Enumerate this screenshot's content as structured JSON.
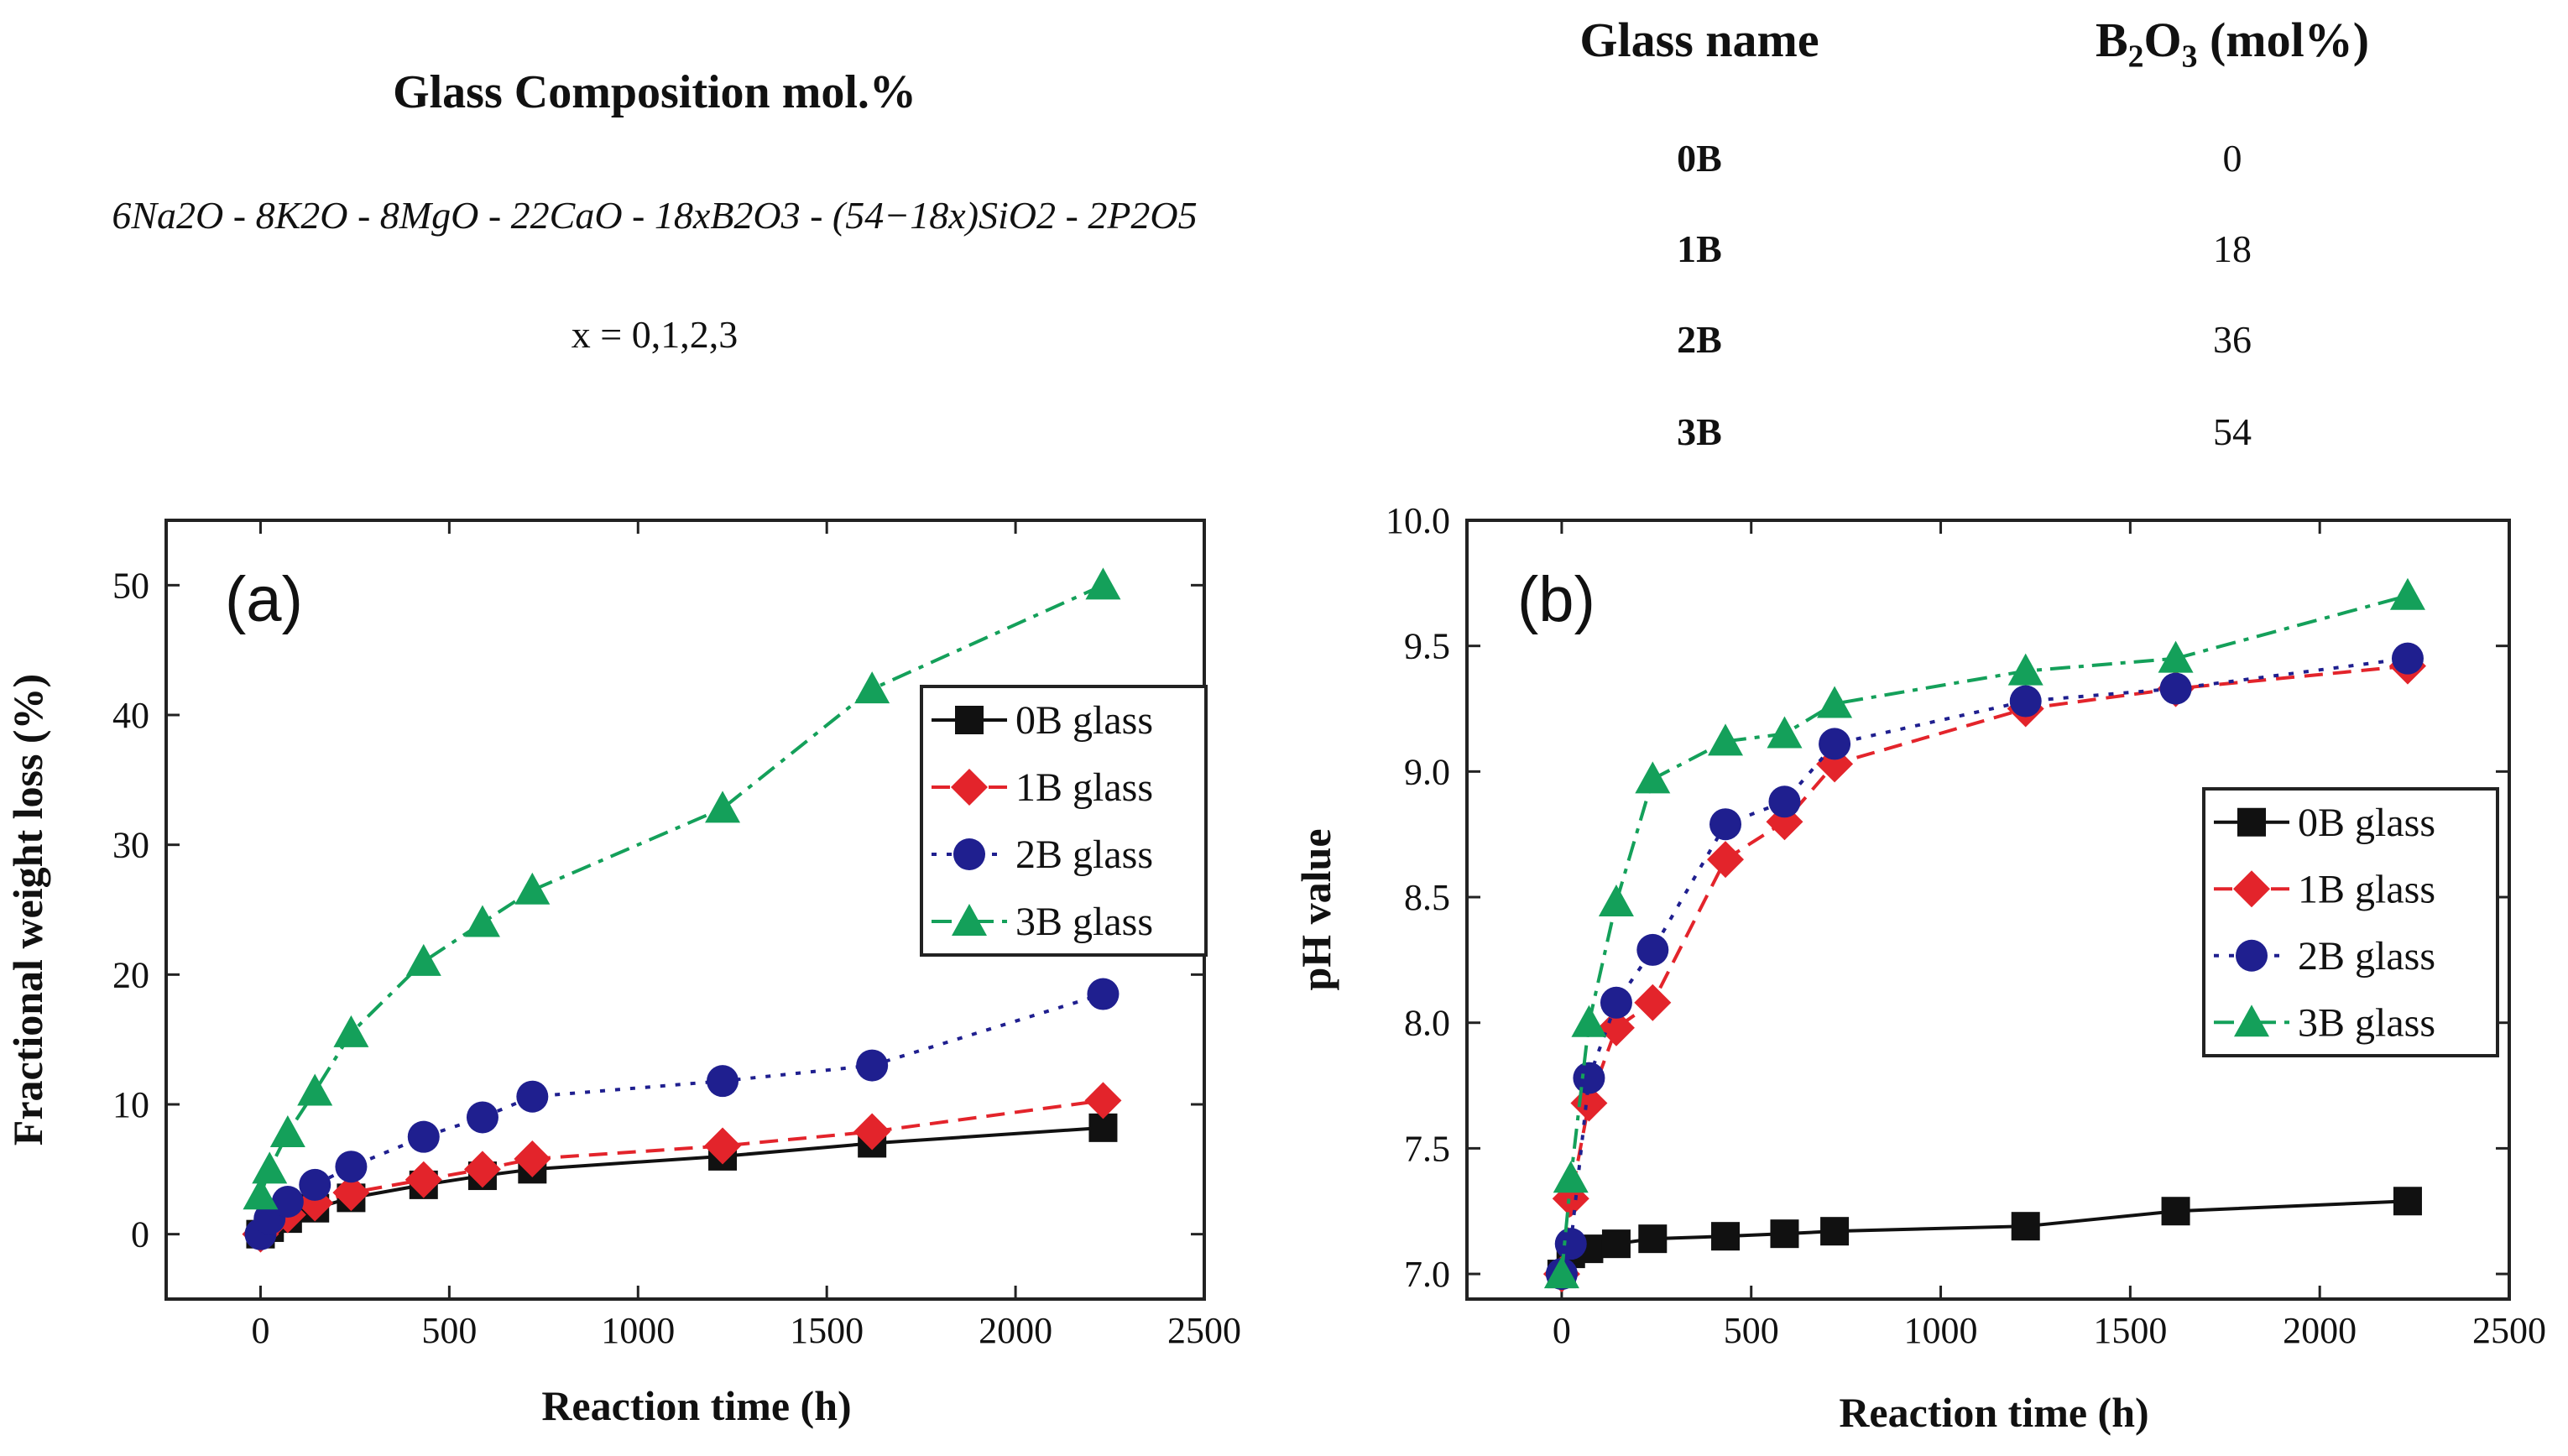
{
  "composition": {
    "title": "Glass Composition mol.%",
    "formula": "6Na2O - 8K2O - 8MgO - 22CaO - 18xB2O3 - (54−18x)SiO2 - 2P2O5",
    "x_values": "x = 0,1,2,3"
  },
  "glass_table": {
    "header_name": "Glass name",
    "header_b2o3_prefix": "B",
    "header_b2o3_sub2": "2",
    "header_b2o3_mid": "O",
    "header_b2o3_sub3": "3",
    "header_b2o3_suffix": " (mol%)",
    "rows": [
      {
        "name": "0B",
        "b2o3": "0"
      },
      {
        "name": "1B",
        "b2o3": "18"
      },
      {
        "name": "2B",
        "b2o3": "36"
      },
      {
        "name": "3B",
        "b2o3": "54"
      }
    ]
  },
  "colors": {
    "0B": "#111111",
    "1B": "#e3242b",
    "2B": "#1f1f8f",
    "3B": "#14a05a",
    "axis": "#222222"
  },
  "chart_data": [
    {
      "type": "line",
      "panel_label": "(a)",
      "xlabel": "Reaction time (h)",
      "ylabel": "Fractional weight loss (%)",
      "xlim": [
        -250,
        2500
      ],
      "ylim": [
        -5,
        55
      ],
      "xticks": [
        0,
        500,
        1000,
        1500,
        2000,
        2500
      ],
      "yticks": [
        0,
        10,
        20,
        30,
        40,
        50
      ],
      "ytick_labels": [
        "0",
        "10",
        "20",
        "30",
        "40",
        "50"
      ],
      "legend_position": "middle-right",
      "x": [
        0,
        24,
        72,
        144,
        240,
        432,
        588,
        720,
        1224,
        1620,
        2232
      ],
      "series": [
        {
          "name": "0B glass",
          "key": "0B",
          "marker": "square",
          "dash": "solid",
          "values": [
            0,
            0.5,
            1.2,
            2.0,
            2.8,
            3.8,
            4.5,
            5.0,
            6.0,
            7.0,
            8.2
          ]
        },
        {
          "name": "1B glass",
          "key": "1B",
          "marker": "diamond",
          "dash": "dashed",
          "values": [
            0,
            0.8,
            1.5,
            2.4,
            3.2,
            4.2,
            5.0,
            5.8,
            6.8,
            7.9,
            10.3
          ]
        },
        {
          "name": "2B glass",
          "key": "2B",
          "marker": "circle",
          "dash": "dotted",
          "values": [
            0,
            1.2,
            2.5,
            3.8,
            5.2,
            7.5,
            9.0,
            10.6,
            11.8,
            13.0,
            18.5
          ]
        },
        {
          "name": "3B glass",
          "key": "3B",
          "marker": "triangle",
          "dash": "dashdot",
          "values": [
            3.0,
            5.0,
            7.8,
            11.0,
            15.5,
            21.0,
            24.0,
            26.5,
            32.8,
            42.0,
            50.0
          ]
        }
      ]
    },
    {
      "type": "line",
      "panel_label": "(b)",
      "xlabel": "Reaction time (h)",
      "ylabel": "pH value",
      "xlim": [
        -250,
        2500
      ],
      "ylim": [
        6.9,
        10.0
      ],
      "xticks": [
        0,
        500,
        1000,
        1500,
        2000,
        2500
      ],
      "yticks": [
        7.0,
        7.5,
        8.0,
        8.5,
        9.0,
        9.5,
        10.0
      ],
      "ytick_labels": [
        "7.0",
        "7.5",
        "8.0",
        "8.5",
        "9.0",
        "9.5",
        "10.0"
      ],
      "legend_position": "lower-right",
      "x": [
        0,
        24,
        72,
        144,
        240,
        432,
        588,
        720,
        1224,
        1620,
        2232
      ],
      "series": [
        {
          "name": "0B glass",
          "key": "0B",
          "marker": "square",
          "dash": "solid",
          "values": [
            7.0,
            7.08,
            7.1,
            7.12,
            7.14,
            7.15,
            7.16,
            7.17,
            7.19,
            7.25,
            7.29
          ]
        },
        {
          "name": "1B glass",
          "key": "1B",
          "marker": "diamond",
          "dash": "dashed",
          "values": [
            7.0,
            7.3,
            7.68,
            7.98,
            8.08,
            8.65,
            8.8,
            9.03,
            9.25,
            9.33,
            9.42
          ]
        },
        {
          "name": "2B glass",
          "key": "2B",
          "marker": "circle",
          "dash": "dotted",
          "values": [
            7.0,
            7.12,
            7.78,
            8.08,
            8.29,
            8.79,
            8.88,
            9.11,
            9.28,
            9.33,
            9.45
          ]
        },
        {
          "name": "3B glass",
          "key": "3B",
          "marker": "triangle",
          "dash": "dashdot",
          "values": [
            7.0,
            7.38,
            8.0,
            8.48,
            8.97,
            9.12,
            9.15,
            9.27,
            9.4,
            9.45,
            9.7
          ]
        }
      ]
    }
  ]
}
